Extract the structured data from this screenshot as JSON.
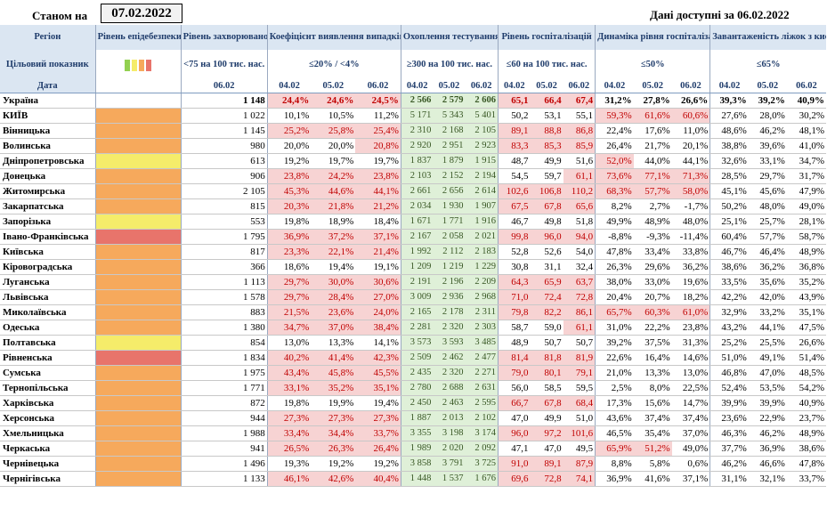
{
  "header": {
    "stanom_label": "Станом на",
    "date": "07.02.2022",
    "available": "Дані доступні за 06.02.2022"
  },
  "columns": {
    "region": "Регіон",
    "target": "Цільовий показник",
    "date_label": "Дата",
    "level": "Рівень епідебезпеки",
    "morbidity": "Рівень захворюваності",
    "morbidity_target": "<75 на 100 тис. нас.",
    "morbidity_date": "06.02",
    "detection": "Коефіцієнт виявлення випадків інфікування",
    "detection_target": "≤20% / <4%",
    "testing": "Охоплення тестуванням",
    "testing_target": "≥300 на 100 тис. нас.",
    "hosp": "Рівень госпіталізацій",
    "hosp_target": "≤60 на 100 тис. нас.",
    "dynamics": "Динаміка рівня госпіталізацій",
    "dynamics_target": "≤50%",
    "beds": "Завантаженість ліжок з киснем",
    "beds_target": "≤65%",
    "d1": "04.02",
    "d2": "05.02",
    "d3": "06.02"
  },
  "level_colors": {
    "orange": "#f6a95c",
    "yellow": "#f5ec6a",
    "red": "#e8746b",
    "green": "#92d050"
  },
  "legend_swatches": [
    "#92d050",
    "#f5ec6a",
    "#f6a95c",
    "#e8746b"
  ],
  "rows": [
    {
      "name": "Україна",
      "level": "",
      "morb": "1 148",
      "det": [
        "24,4%",
        "24,6%",
        "24,5%"
      ],
      "test": [
        "2 566",
        "2 579",
        "2 606"
      ],
      "hosp": [
        "65,1",
        "66,4",
        "67,4"
      ],
      "dyn": [
        "31,2%",
        "27,8%",
        "26,6%"
      ],
      "beds": [
        "39,3%",
        "39,2%",
        "40,9%"
      ]
    },
    {
      "name": "КИЇВ",
      "level": "orange",
      "morb": "1 022",
      "det": [
        "10,1%",
        "10,5%",
        "11,2%"
      ],
      "test": [
        "5 171",
        "5 343",
        "5 401"
      ],
      "hosp": [
        "50,2",
        "53,1",
        "55,1"
      ],
      "dyn": [
        "59,3%",
        "61,6%",
        "60,6%"
      ],
      "beds": [
        "27,6%",
        "28,0%",
        "30,2%"
      ]
    },
    {
      "name": "Вінницька",
      "level": "orange",
      "morb": "1 145",
      "det": [
        "25,2%",
        "25,8%",
        "25,4%"
      ],
      "test": [
        "2 310",
        "2 168",
        "2 105"
      ],
      "hosp": [
        "89,1",
        "88,8",
        "86,8"
      ],
      "dyn": [
        "22,4%",
        "17,6%",
        "11,0%"
      ],
      "beds": [
        "48,6%",
        "46,2%",
        "48,1%"
      ]
    },
    {
      "name": "Волинська",
      "level": "orange",
      "morb": "980",
      "det": [
        "20,0%",
        "20,0%",
        "20,8%"
      ],
      "test": [
        "2 920",
        "2 951",
        "2 923"
      ],
      "hosp": [
        "83,3",
        "85,3",
        "85,9"
      ],
      "dyn": [
        "26,4%",
        "21,7%",
        "20,1%"
      ],
      "beds": [
        "38,8%",
        "39,6%",
        "41,0%"
      ]
    },
    {
      "name": "Дніпропетровська",
      "level": "yellow",
      "morb": "613",
      "det": [
        "19,2%",
        "19,7%",
        "19,7%"
      ],
      "test": [
        "1 837",
        "1 879",
        "1 915"
      ],
      "hosp": [
        "48,7",
        "49,9",
        "51,6"
      ],
      "dyn": [
        "52,0%",
        "44,0%",
        "44,1%"
      ],
      "beds": [
        "32,6%",
        "33,1%",
        "34,7%"
      ]
    },
    {
      "name": "Донецька",
      "level": "orange",
      "morb": "906",
      "det": [
        "23,8%",
        "24,2%",
        "23,8%"
      ],
      "test": [
        "2 103",
        "2 152",
        "2 194"
      ],
      "hosp": [
        "54,5",
        "59,7",
        "61,1"
      ],
      "dyn": [
        "73,6%",
        "77,1%",
        "71,3%"
      ],
      "beds": [
        "28,5%",
        "29,7%",
        "31,7%"
      ]
    },
    {
      "name": "Житомирська",
      "level": "orange",
      "morb": "2 105",
      "det": [
        "45,3%",
        "44,6%",
        "44,1%"
      ],
      "test": [
        "2 661",
        "2 656",
        "2 614"
      ],
      "hosp": [
        "102,6",
        "106,8",
        "110,2"
      ],
      "dyn": [
        "68,3%",
        "57,7%",
        "58,0%"
      ],
      "beds": [
        "45,1%",
        "45,6%",
        "47,9%"
      ]
    },
    {
      "name": "Закарпатська",
      "level": "orange",
      "morb": "815",
      "det": [
        "20,3%",
        "21,8%",
        "21,2%"
      ],
      "test": [
        "2 034",
        "1 930",
        "1 907"
      ],
      "hosp": [
        "67,5",
        "67,8",
        "65,6"
      ],
      "dyn": [
        "8,2%",
        "2,7%",
        "-1,7%"
      ],
      "beds": [
        "50,2%",
        "48,0%",
        "49,0%"
      ]
    },
    {
      "name": "Запорізька",
      "level": "yellow",
      "morb": "553",
      "det": [
        "19,8%",
        "18,9%",
        "18,4%"
      ],
      "test": [
        "1 671",
        "1 771",
        "1 916"
      ],
      "hosp": [
        "46,7",
        "49,8",
        "51,8"
      ],
      "dyn": [
        "49,9%",
        "48,9%",
        "48,0%"
      ],
      "beds": [
        "25,1%",
        "25,7%",
        "28,1%"
      ]
    },
    {
      "name": "Івано-Франківська",
      "level": "red",
      "morb": "1 795",
      "det": [
        "36,9%",
        "37,2%",
        "37,1%"
      ],
      "test": [
        "2 167",
        "2 058",
        "2 021"
      ],
      "hosp": [
        "99,8",
        "96,0",
        "94,0"
      ],
      "dyn": [
        "-8,8%",
        "-9,3%",
        "-11,4%"
      ],
      "beds": [
        "60,4%",
        "57,7%",
        "58,7%"
      ]
    },
    {
      "name": "Київська",
      "level": "orange",
      "morb": "817",
      "det": [
        "23,3%",
        "22,1%",
        "21,4%"
      ],
      "test": [
        "1 992",
        "2 112",
        "2 183"
      ],
      "hosp": [
        "52,8",
        "52,6",
        "54,0"
      ],
      "dyn": [
        "47,8%",
        "33,4%",
        "33,8%"
      ],
      "beds": [
        "46,7%",
        "46,4%",
        "48,9%"
      ]
    },
    {
      "name": "Кіровоградська",
      "level": "orange",
      "morb": "366",
      "det": [
        "18,6%",
        "19,4%",
        "19,1%"
      ],
      "test": [
        "1 209",
        "1 219",
        "1 229"
      ],
      "hosp": [
        "30,8",
        "31,1",
        "32,4"
      ],
      "dyn": [
        "26,3%",
        "29,6%",
        "36,2%"
      ],
      "beds": [
        "38,6%",
        "36,2%",
        "36,8%"
      ]
    },
    {
      "name": "Луганська",
      "level": "orange",
      "morb": "1 113",
      "det": [
        "29,7%",
        "30,0%",
        "30,6%"
      ],
      "test": [
        "2 191",
        "2 196",
        "2 209"
      ],
      "hosp": [
        "64,3",
        "65,9",
        "63,7"
      ],
      "dyn": [
        "38,0%",
        "33,0%",
        "19,6%"
      ],
      "beds": [
        "33,5%",
        "35,6%",
        "35,2%"
      ]
    },
    {
      "name": "Львівська",
      "level": "orange",
      "morb": "1 578",
      "det": [
        "29,7%",
        "28,4%",
        "27,0%"
      ],
      "test": [
        "3 009",
        "2 936",
        "2 968"
      ],
      "hosp": [
        "71,0",
        "72,4",
        "72,8"
      ],
      "dyn": [
        "20,4%",
        "20,7%",
        "18,2%"
      ],
      "beds": [
        "42,2%",
        "42,0%",
        "43,9%"
      ]
    },
    {
      "name": "Миколаївська",
      "level": "orange",
      "morb": "883",
      "det": [
        "21,5%",
        "23,6%",
        "24,0%"
      ],
      "test": [
        "2 165",
        "2 178",
        "2 311"
      ],
      "hosp": [
        "79,8",
        "82,2",
        "86,1"
      ],
      "dyn": [
        "65,7%",
        "60,3%",
        "61,0%"
      ],
      "beds": [
        "32,9%",
        "33,2%",
        "35,1%"
      ]
    },
    {
      "name": "Одеська",
      "level": "orange",
      "morb": "1 380",
      "det": [
        "34,7%",
        "37,0%",
        "38,4%"
      ],
      "test": [
        "2 281",
        "2 320",
        "2 303"
      ],
      "hosp": [
        "58,7",
        "59,0",
        "61,1"
      ],
      "dyn": [
        "31,0%",
        "22,2%",
        "23,8%"
      ],
      "beds": [
        "43,2%",
        "44,1%",
        "47,5%"
      ]
    },
    {
      "name": "Полтавська",
      "level": "yellow",
      "morb": "854",
      "det": [
        "13,0%",
        "13,3%",
        "14,1%"
      ],
      "test": [
        "3 573",
        "3 593",
        "3 485"
      ],
      "hosp": [
        "48,9",
        "50,7",
        "50,7"
      ],
      "dyn": [
        "39,2%",
        "37,5%",
        "31,3%"
      ],
      "beds": [
        "25,2%",
        "25,5%",
        "26,6%"
      ]
    },
    {
      "name": "Рівненська",
      "level": "red",
      "morb": "1 834",
      "det": [
        "40,2%",
        "41,4%",
        "42,3%"
      ],
      "test": [
        "2 509",
        "2 462",
        "2 477"
      ],
      "hosp": [
        "81,4",
        "81,8",
        "81,9"
      ],
      "dyn": [
        "22,6%",
        "16,4%",
        "14,6%"
      ],
      "beds": [
        "51,0%",
        "49,1%",
        "51,4%"
      ]
    },
    {
      "name": "Сумська",
      "level": "orange",
      "morb": "1 975",
      "det": [
        "43,4%",
        "45,8%",
        "45,5%"
      ],
      "test": [
        "2 435",
        "2 320",
        "2 271"
      ],
      "hosp": [
        "79,0",
        "80,1",
        "79,1"
      ],
      "dyn": [
        "21,0%",
        "13,3%",
        "13,0%"
      ],
      "beds": [
        "46,8%",
        "47,0%",
        "48,5%"
      ]
    },
    {
      "name": "Тернопільська",
      "level": "orange",
      "morb": "1 771",
      "det": [
        "33,1%",
        "35,2%",
        "35,1%"
      ],
      "test": [
        "2 780",
        "2 688",
        "2 631"
      ],
      "hosp": [
        "56,0",
        "58,5",
        "59,5"
      ],
      "dyn": [
        "2,5%",
        "8,0%",
        "22,5%"
      ],
      "beds": [
        "52,4%",
        "53,5%",
        "54,2%"
      ]
    },
    {
      "name": "Харківська",
      "level": "orange",
      "morb": "872",
      "det": [
        "19,8%",
        "19,9%",
        "19,4%"
      ],
      "test": [
        "2 450",
        "2 463",
        "2 595"
      ],
      "hosp": [
        "66,7",
        "67,8",
        "68,4"
      ],
      "dyn": [
        "17,3%",
        "15,6%",
        "14,7%"
      ],
      "beds": [
        "39,9%",
        "39,9%",
        "40,9%"
      ]
    },
    {
      "name": "Херсонська",
      "level": "orange",
      "morb": "944",
      "det": [
        "27,3%",
        "27,3%",
        "27,3%"
      ],
      "test": [
        "1 887",
        "2 013",
        "2 102"
      ],
      "hosp": [
        "47,0",
        "49,9",
        "51,0"
      ],
      "dyn": [
        "43,6%",
        "37,4%",
        "37,4%"
      ],
      "beds": [
        "23,6%",
        "22,9%",
        "23,7%"
      ]
    },
    {
      "name": "Хмельницька",
      "level": "orange",
      "morb": "1 988",
      "det": [
        "33,4%",
        "34,4%",
        "33,7%"
      ],
      "test": [
        "3 355",
        "3 198",
        "3 174"
      ],
      "hosp": [
        "96,0",
        "97,2",
        "101,6"
      ],
      "dyn": [
        "46,5%",
        "35,4%",
        "37,0%"
      ],
      "beds": [
        "46,3%",
        "46,2%",
        "48,9%"
      ]
    },
    {
      "name": "Черкаська",
      "level": "orange",
      "morb": "941",
      "det": [
        "26,5%",
        "26,3%",
        "26,4%"
      ],
      "test": [
        "1 989",
        "2 020",
        "2 092"
      ],
      "hosp": [
        "47,1",
        "47,0",
        "49,5"
      ],
      "dyn": [
        "65,9%",
        "51,2%",
        "49,0%"
      ],
      "beds": [
        "37,7%",
        "36,9%",
        "38,6%"
      ]
    },
    {
      "name": "Чернівецька",
      "level": "orange",
      "morb": "1 496",
      "det": [
        "19,3%",
        "19,2%",
        "19,2%"
      ],
      "test": [
        "3 858",
        "3 791",
        "3 725"
      ],
      "hosp": [
        "91,0",
        "89,1",
        "87,9"
      ],
      "dyn": [
        "8,8%",
        "5,8%",
        "0,6%"
      ],
      "beds": [
        "46,2%",
        "46,6%",
        "47,8%"
      ]
    },
    {
      "name": "Чернігівська",
      "level": "orange",
      "morb": "1 133",
      "det": [
        "46,1%",
        "42,6%",
        "40,4%"
      ],
      "test": [
        "1 448",
        "1 537",
        "1 676"
      ],
      "hosp": [
        "69,6",
        "72,8",
        "74,1"
      ],
      "dyn": [
        "36,9%",
        "41,6%",
        "37,1%"
      ],
      "beds": [
        "31,1%",
        "32,1%",
        "33,7%"
      ]
    }
  ]
}
